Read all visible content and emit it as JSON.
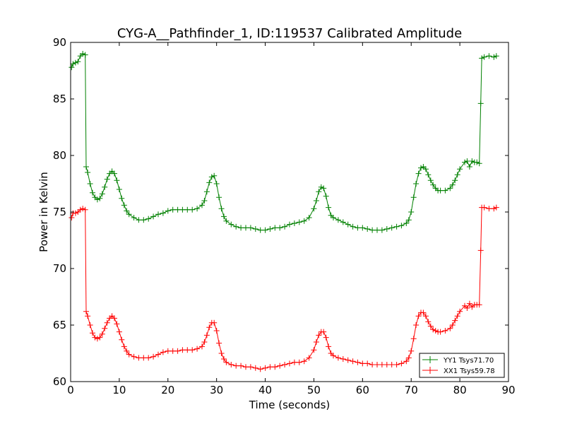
{
  "chart_data": {
    "type": "line",
    "title": "CYG-A__Pathfinder_1, ID:119537 Calibrated Amplitude",
    "xlabel": "Time (seconds)",
    "ylabel": "Power in Kelvin",
    "xlim": [
      0,
      90
    ],
    "ylim": [
      60,
      90
    ],
    "xticks": [
      "0",
      "10",
      "20",
      "30",
      "40",
      "50",
      "60",
      "70",
      "80",
      "90"
    ],
    "yticks": [
      "60",
      "65",
      "70",
      "75",
      "80",
      "85",
      "90"
    ],
    "grid": false,
    "legend_position": "lower-right",
    "marker": "+",
    "series": [
      {
        "name": "YY1 Tsys71.70",
        "color": "#008000",
        "points": [
          [
            0.2,
            87.8
          ],
          [
            0.5,
            88.1
          ],
          [
            1.0,
            88.2
          ],
          [
            1.5,
            88.3
          ],
          [
            2.0,
            88.8
          ],
          [
            2.5,
            89.0
          ],
          [
            3.0,
            88.9
          ],
          [
            3.2,
            79.0
          ],
          [
            3.5,
            78.5
          ],
          [
            4.0,
            77.5
          ],
          [
            4.5,
            76.7
          ],
          [
            5.0,
            76.3
          ],
          [
            5.5,
            76.1
          ],
          [
            6.0,
            76.2
          ],
          [
            6.5,
            76.6
          ],
          [
            7.0,
            77.2
          ],
          [
            7.5,
            77.9
          ],
          [
            8.0,
            78.4
          ],
          [
            8.5,
            78.6
          ],
          [
            9.0,
            78.4
          ],
          [
            9.5,
            77.8
          ],
          [
            10.0,
            77.0
          ],
          [
            10.5,
            76.2
          ],
          [
            11.0,
            75.6
          ],
          [
            11.5,
            75.1
          ],
          [
            12.0,
            74.8
          ],
          [
            13.0,
            74.5
          ],
          [
            14.0,
            74.3
          ],
          [
            15.0,
            74.3
          ],
          [
            16.0,
            74.4
          ],
          [
            17.0,
            74.6
          ],
          [
            18.0,
            74.8
          ],
          [
            19.0,
            74.9
          ],
          [
            20.0,
            75.1
          ],
          [
            21.0,
            75.2
          ],
          [
            22.0,
            75.2
          ],
          [
            23.0,
            75.2
          ],
          [
            24.0,
            75.2
          ],
          [
            25.0,
            75.2
          ],
          [
            26.0,
            75.3
          ],
          [
            27.0,
            75.6
          ],
          [
            27.5,
            76.0
          ],
          [
            28.0,
            76.8
          ],
          [
            28.5,
            77.6
          ],
          [
            29.0,
            78.1
          ],
          [
            29.5,
            78.2
          ],
          [
            30.0,
            77.5
          ],
          [
            30.5,
            76.3
          ],
          [
            31.0,
            75.3
          ],
          [
            31.5,
            74.6
          ],
          [
            32.0,
            74.2
          ],
          [
            33.0,
            73.9
          ],
          [
            34.0,
            73.7
          ],
          [
            35.0,
            73.6
          ],
          [
            36.0,
            73.6
          ],
          [
            37.0,
            73.6
          ],
          [
            38.0,
            73.5
          ],
          [
            39.0,
            73.4
          ],
          [
            40.0,
            73.4
          ],
          [
            41.0,
            73.5
          ],
          [
            42.0,
            73.6
          ],
          [
            43.0,
            73.6
          ],
          [
            44.0,
            73.7
          ],
          [
            45.0,
            73.9
          ],
          [
            46.0,
            74.0
          ],
          [
            47.0,
            74.1
          ],
          [
            48.0,
            74.2
          ],
          [
            49.0,
            74.5
          ],
          [
            50.0,
            75.3
          ],
          [
            50.5,
            76.0
          ],
          [
            51.0,
            76.8
          ],
          [
            51.5,
            77.2
          ],
          [
            52.0,
            77.1
          ],
          [
            52.5,
            76.4
          ],
          [
            53.0,
            75.4
          ],
          [
            53.5,
            74.7
          ],
          [
            54.0,
            74.5
          ],
          [
            55.0,
            74.3
          ],
          [
            56.0,
            74.1
          ],
          [
            57.0,
            73.9
          ],
          [
            58.0,
            73.7
          ],
          [
            59.0,
            73.6
          ],
          [
            60.0,
            73.6
          ],
          [
            61.0,
            73.5
          ],
          [
            62.0,
            73.4
          ],
          [
            63.0,
            73.4
          ],
          [
            64.0,
            73.4
          ],
          [
            65.0,
            73.5
          ],
          [
            66.0,
            73.6
          ],
          [
            67.0,
            73.7
          ],
          [
            68.0,
            73.8
          ],
          [
            69.0,
            74.0
          ],
          [
            69.5,
            74.3
          ],
          [
            70.0,
            75.0
          ],
          [
            70.5,
            76.3
          ],
          [
            71.0,
            77.5
          ],
          [
            71.5,
            78.4
          ],
          [
            72.0,
            78.9
          ],
          [
            72.5,
            79.0
          ],
          [
            73.0,
            78.8
          ],
          [
            73.5,
            78.3
          ],
          [
            74.0,
            77.8
          ],
          [
            74.5,
            77.4
          ],
          [
            75.0,
            77.1
          ],
          [
            75.5,
            76.9
          ],
          [
            76.0,
            76.9
          ],
          [
            77.0,
            76.9
          ],
          [
            78.0,
            77.1
          ],
          [
            78.5,
            77.4
          ],
          [
            79.0,
            77.8
          ],
          [
            79.5,
            78.3
          ],
          [
            80.0,
            78.8
          ],
          [
            81.0,
            79.4
          ],
          [
            81.5,
            79.5
          ],
          [
            82.0,
            79.0
          ],
          [
            82.5,
            79.5
          ],
          [
            83.0,
            79.4
          ],
          [
            83.5,
            79.4
          ],
          [
            84.0,
            79.3
          ],
          [
            84.3,
            84.6
          ],
          [
            84.5,
            88.6
          ],
          [
            85.0,
            88.7
          ],
          [
            86.0,
            88.8
          ],
          [
            87.0,
            88.7
          ],
          [
            87.5,
            88.8
          ]
        ]
      },
      {
        "name": "XX1 Tsys59.78",
        "color": "#ff0000",
        "points": [
          [
            0.2,
            74.5
          ],
          [
            0.5,
            74.9
          ],
          [
            1.0,
            74.9
          ],
          [
            1.5,
            75.0
          ],
          [
            2.0,
            75.2
          ],
          [
            2.5,
            75.3
          ],
          [
            3.0,
            75.2
          ],
          [
            3.2,
            66.2
          ],
          [
            3.5,
            65.8
          ],
          [
            4.0,
            65.0
          ],
          [
            4.5,
            64.3
          ],
          [
            5.0,
            63.9
          ],
          [
            5.5,
            63.8
          ],
          [
            6.0,
            63.9
          ],
          [
            6.5,
            64.2
          ],
          [
            7.0,
            64.7
          ],
          [
            7.5,
            65.2
          ],
          [
            8.0,
            65.6
          ],
          [
            8.5,
            65.8
          ],
          [
            9.0,
            65.6
          ],
          [
            9.5,
            65.1
          ],
          [
            10.0,
            64.4
          ],
          [
            10.5,
            63.7
          ],
          [
            11.0,
            63.1
          ],
          [
            11.5,
            62.7
          ],
          [
            12.0,
            62.4
          ],
          [
            13.0,
            62.2
          ],
          [
            14.0,
            62.1
          ],
          [
            15.0,
            62.1
          ],
          [
            16.0,
            62.1
          ],
          [
            17.0,
            62.2
          ],
          [
            18.0,
            62.4
          ],
          [
            19.0,
            62.6
          ],
          [
            20.0,
            62.7
          ],
          [
            21.0,
            62.7
          ],
          [
            22.0,
            62.7
          ],
          [
            23.0,
            62.8
          ],
          [
            24.0,
            62.8
          ],
          [
            25.0,
            62.8
          ],
          [
            26.0,
            62.9
          ],
          [
            27.0,
            63.1
          ],
          [
            27.5,
            63.5
          ],
          [
            28.0,
            64.1
          ],
          [
            28.5,
            64.8
          ],
          [
            29.0,
            65.2
          ],
          [
            29.5,
            65.2
          ],
          [
            30.0,
            64.5
          ],
          [
            30.5,
            63.4
          ],
          [
            31.0,
            62.5
          ],
          [
            31.5,
            62.0
          ],
          [
            32.0,
            61.7
          ],
          [
            33.0,
            61.5
          ],
          [
            34.0,
            61.4
          ],
          [
            35.0,
            61.4
          ],
          [
            36.0,
            61.3
          ],
          [
            37.0,
            61.3
          ],
          [
            38.0,
            61.2
          ],
          [
            39.0,
            61.1
          ],
          [
            40.0,
            61.2
          ],
          [
            41.0,
            61.3
          ],
          [
            42.0,
            61.3
          ],
          [
            43.0,
            61.4
          ],
          [
            44.0,
            61.5
          ],
          [
            45.0,
            61.6
          ],
          [
            46.0,
            61.7
          ],
          [
            47.0,
            61.7
          ],
          [
            48.0,
            61.8
          ],
          [
            49.0,
            62.1
          ],
          [
            50.0,
            62.8
          ],
          [
            50.5,
            63.5
          ],
          [
            51.0,
            64.1
          ],
          [
            51.5,
            64.4
          ],
          [
            52.0,
            64.4
          ],
          [
            52.5,
            63.9
          ],
          [
            53.0,
            63.1
          ],
          [
            53.5,
            62.5
          ],
          [
            54.0,
            62.3
          ],
          [
            55.0,
            62.1
          ],
          [
            56.0,
            62.0
          ],
          [
            57.0,
            61.9
          ],
          [
            58.0,
            61.8
          ],
          [
            59.0,
            61.7
          ],
          [
            60.0,
            61.6
          ],
          [
            61.0,
            61.6
          ],
          [
            62.0,
            61.5
          ],
          [
            63.0,
            61.5
          ],
          [
            64.0,
            61.5
          ],
          [
            65.0,
            61.5
          ],
          [
            66.0,
            61.5
          ],
          [
            67.0,
            61.5
          ],
          [
            68.0,
            61.6
          ],
          [
            69.0,
            61.8
          ],
          [
            69.5,
            62.1
          ],
          [
            70.0,
            62.7
          ],
          [
            70.5,
            63.8
          ],
          [
            71.0,
            65.0
          ],
          [
            71.5,
            65.8
          ],
          [
            72.0,
            66.1
          ],
          [
            72.5,
            66.1
          ],
          [
            73.0,
            65.8
          ],
          [
            73.5,
            65.3
          ],
          [
            74.0,
            64.9
          ],
          [
            74.5,
            64.6
          ],
          [
            75.0,
            64.5
          ],
          [
            75.5,
            64.4
          ],
          [
            76.0,
            64.4
          ],
          [
            77.0,
            64.5
          ],
          [
            78.0,
            64.7
          ],
          [
            78.5,
            65.0
          ],
          [
            79.0,
            65.4
          ],
          [
            79.5,
            65.8
          ],
          [
            80.0,
            66.2
          ],
          [
            81.0,
            66.7
          ],
          [
            81.5,
            66.5
          ],
          [
            82.0,
            66.9
          ],
          [
            82.5,
            66.6
          ],
          [
            83.0,
            66.8
          ],
          [
            83.5,
            66.8
          ],
          [
            84.0,
            66.8
          ],
          [
            84.3,
            71.6
          ],
          [
            84.5,
            75.4
          ],
          [
            85.0,
            75.4
          ],
          [
            86.0,
            75.3
          ],
          [
            87.0,
            75.3
          ],
          [
            87.5,
            75.4
          ]
        ]
      }
    ]
  }
}
